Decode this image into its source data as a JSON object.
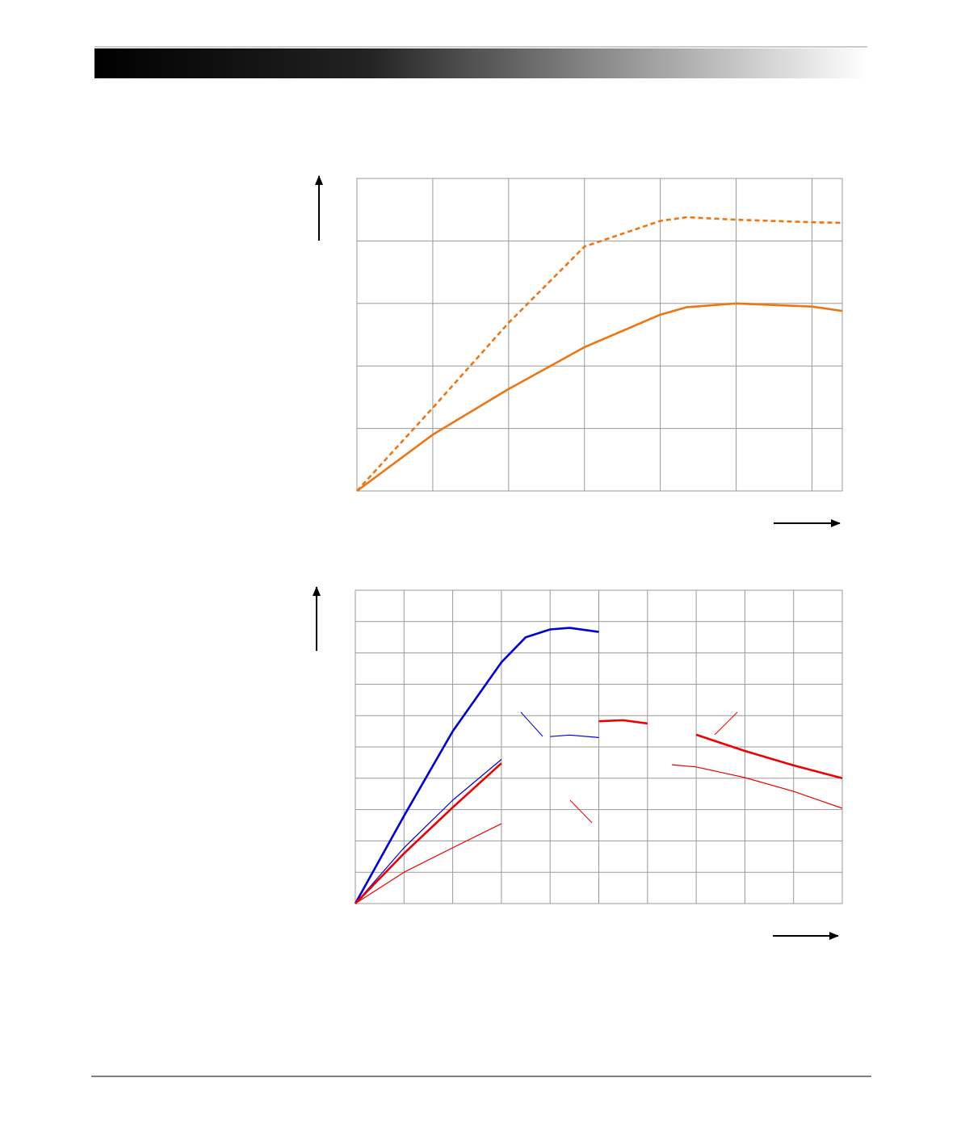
{
  "chart_data": [
    {
      "type": "line",
      "xlim": [
        0,
        6.4
      ],
      "ylim": [
        0,
        5
      ],
      "xticks": [
        0,
        1,
        2,
        3,
        4,
        5,
        6
      ],
      "yticks": [
        0,
        1,
        2,
        3,
        4,
        5
      ],
      "grid": true,
      "x": [
        0,
        1,
        2,
        3,
        4,
        4.35,
        5,
        6,
        6.4
      ],
      "series": [
        {
          "color": "#ee7511",
          "style": "dashed",
          "weight": "thick",
          "values": [
            0,
            1.33,
            2.69,
            3.91,
            4.32,
            4.38,
            4.34,
            4.3,
            4.29
          ]
        },
        {
          "color": "#ee7511",
          "style": "solid",
          "weight": "thick",
          "values": [
            0,
            0.9,
            1.63,
            2.3,
            2.82,
            2.94,
            3.0,
            2.95,
            2.88
          ]
        }
      ]
    },
    {
      "type": "line",
      "xlim": [
        0,
        10
      ],
      "ylim": [
        0,
        10
      ],
      "xticks": [
        0,
        1,
        2,
        3,
        4,
        5,
        6,
        7,
        8,
        9,
        10
      ],
      "yticks": [
        0,
        1,
        2,
        3,
        4,
        5,
        6,
        7,
        8,
        9,
        10
      ],
      "grid": true,
      "x": [
        0,
        1,
        2,
        3,
        3.5,
        4,
        4.4,
        5,
        5.5,
        6,
        6.4,
        6.5,
        7,
        8,
        9,
        10
      ],
      "series": [
        {
          "color": "#0000dd",
          "style": "solid",
          "weight": "thick",
          "values": [
            0,
            2.8,
            5.5,
            7.7,
            8.5,
            8.75,
            8.8,
            8.67,
            null,
            null,
            8.62,
            null,
            null,
            null,
            null,
            null
          ]
        },
        {
          "color": "#0000dd",
          "style": "solid",
          "weight": "thin",
          "values": [
            0,
            1.78,
            3.3,
            4.6,
            null,
            5.33,
            5.38,
            5.3,
            null,
            null,
            5.0,
            null,
            null,
            null,
            null,
            null
          ]
        },
        {
          "color": "#ee0000",
          "style": "solid",
          "weight": "thick",
          "values": [
            0,
            1.6,
            3.07,
            4.48,
            null,
            5.5,
            null,
            5.82,
            5.85,
            5.75,
            null,
            null,
            5.39,
            4.87,
            4.41,
            4.0
          ]
        },
        {
          "color": "#ee0000",
          "style": "solid",
          "weight": "thin",
          "values": [
            0,
            1.0,
            1.78,
            2.55,
            null,
            3.25,
            null,
            3.97,
            null,
            4.36,
            null,
            4.43,
            4.36,
            4.02,
            3.58,
            3.04
          ]
        }
      ]
    }
  ]
}
